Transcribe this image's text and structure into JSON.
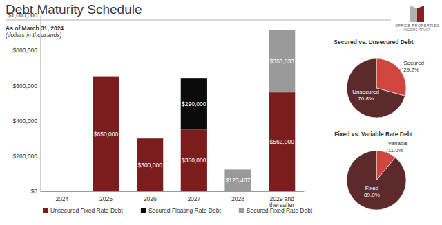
{
  "header": {
    "title": "Debt Maturity Schedule",
    "logo": [
      "OFFICE PROPERTIES",
      "INCOME TRUST"
    ]
  },
  "chart_data": [
    {
      "type": "bar",
      "subtitle": "As of March 31, 2024",
      "annotations": [
        "(dollars in thousands)"
      ],
      "categories": [
        "2024",
        "2025",
        "2026",
        "2027",
        "2028",
        "2029 and thereafter"
      ],
      "stacked": true,
      "data_labels": true,
      "legend": "bottom",
      "grid": false,
      "ylim": [
        0,
        1000000
      ],
      "yticks": [
        {
          "value": 0,
          "label": "$0"
        },
        {
          "value": 200000,
          "label": "$200,000"
        },
        {
          "value": 400000,
          "label": "$400,000"
        },
        {
          "value": 600000,
          "label": "$600,000"
        },
        {
          "value": 800000,
          "label": "$800,000"
        },
        {
          "value": 1000000,
          "label": "$1,000,000"
        }
      ],
      "series": [
        {
          "name": "Unsecured Fixed Rate Debt",
          "color": "#7b1d1d",
          "values": [
            null,
            650000,
            300000,
            350000,
            null,
            562000
          ],
          "value_labels": [
            null,
            "$650,000",
            "$300,000",
            "$350,000",
            null,
            "$562,000"
          ]
        },
        {
          "name": "Secured Floating Rate Debt",
          "color": "#0a0a0a",
          "values": [
            null,
            null,
            null,
            290000,
            null,
            null
          ],
          "value_labels": [
            null,
            null,
            null,
            "$290,000",
            null,
            null
          ]
        },
        {
          "name": "Secured Fixed Rate Debt",
          "color": "#9a9a9a",
          "values": [
            null,
            null,
            null,
            null,
            123487,
            353833
          ],
          "value_labels": [
            null,
            null,
            null,
            null,
            "$123,487",
            "$353,833"
          ]
        }
      ]
    },
    {
      "type": "pie",
      "title": "Secured vs. Unsecured Debt",
      "categories": [
        "Secured",
        "Unsecured"
      ],
      "values": [
        29.2,
        70.8
      ],
      "value_labels": [
        "29.2%",
        "70.8%"
      ],
      "colors": [
        "#d0453d",
        "#5c2a2a"
      ],
      "data_labels": true
    },
    {
      "type": "pie",
      "title": "Fixed vs. Variable Rate Debt",
      "categories": [
        "Variable",
        "Fixed"
      ],
      "values": [
        11.0,
        89.0
      ],
      "value_labels": [
        "11.0%",
        "89.0%"
      ],
      "colors": [
        "#d0453d",
        "#5c2a2a"
      ],
      "data_labels": true
    }
  ]
}
